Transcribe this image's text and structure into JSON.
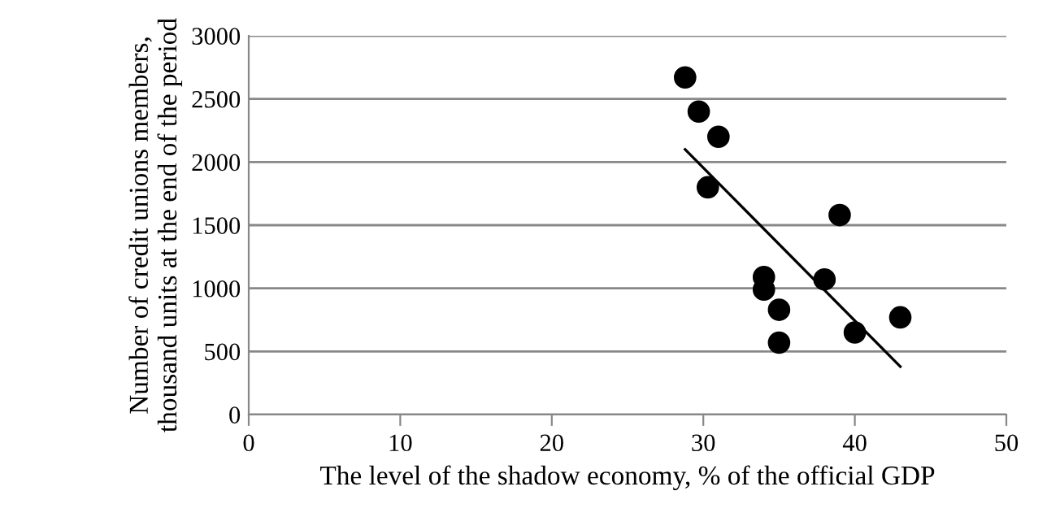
{
  "chart_data": {
    "type": "scatter",
    "xlabel": "The level of the shadow economy, % of the official GDP",
    "ylabel": "Number of credit unions members, thousand units at the end of the period",
    "series": [
      {
        "color": "#000000",
        "marker": "circle",
        "x": [
          28.8,
          29.7,
          31,
          30.3,
          34,
          34,
          35,
          35,
          38,
          39,
          40,
          43
        ],
        "values": [
          2670,
          2400,
          2200,
          1800,
          1090,
          990,
          830,
          570,
          1070,
          1580,
          650,
          770
        ]
      },
      {
        "type": "line",
        "marker": "none",
        "color": "#000000",
        "x": [
          28.8,
          43
        ],
        "values": [
          2100,
          380
        ]
      }
    ],
    "xlim": [
      0,
      50
    ],
    "xticks": [
      0,
      10,
      20,
      30,
      40,
      50
    ],
    "ylim": [
      0,
      3000
    ],
    "yticks": [
      0,
      500,
      1000,
      1500,
      2000,
      2500,
      3000
    ],
    "grid": "y",
    "legend": false
  }
}
